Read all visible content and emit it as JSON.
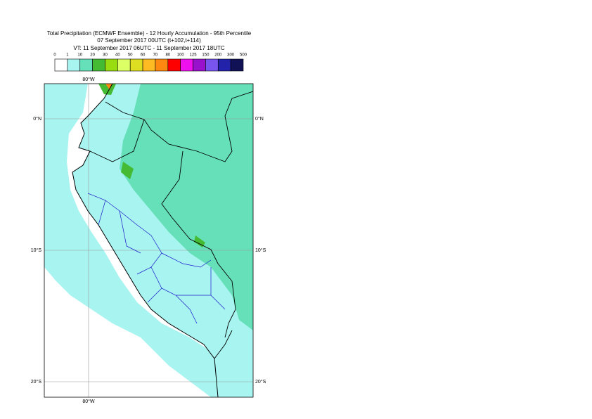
{
  "header": {
    "lines": [
      "Total Precipitation (ECMWF Ensemble) - 12 Hourly Accumulation - 95th Percentile",
      "07 September 2017 00UTC (t+102,t+114)",
      "VT: 11 September 2017 06UTC - 11 September 2017 18UTC"
    ]
  },
  "legend": {
    "labels": [
      "0",
      "1",
      "10",
      "20",
      "30",
      "40",
      "50",
      "60",
      "70",
      "80",
      "100",
      "125",
      "150",
      "200",
      "300",
      "500"
    ],
    "colors": [
      "#ffffff",
      "#a8f4f0",
      "#66e0b8",
      "#44bb33",
      "#99dd11",
      "#ddff66",
      "#dddd22",
      "#ffbb22",
      "#ff8811",
      "#ff0000",
      "#ee11ee",
      "#9911cc",
      "#7755ee",
      "#2222aa",
      "#111155"
    ]
  },
  "graticule": {
    "lon_top": "80°W",
    "lon_bottom": "80°W",
    "lat_left": [
      "0°N",
      "10°S",
      "20°S"
    ],
    "lat_right": [
      "0°N",
      "10°S",
      "20°S"
    ]
  }
}
